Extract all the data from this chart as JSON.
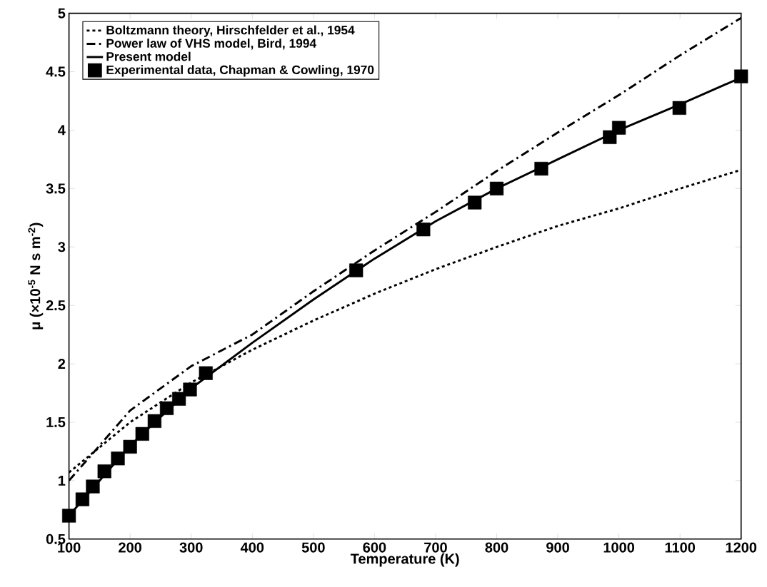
{
  "chart_data": {
    "type": "line",
    "xlabel": "Temperature  (K)",
    "ylabel": "μ  (×10$^{-5}$ N s m$^{-2}$)",
    "xlim": [
      100,
      1200
    ],
    "ylim": [
      0.5,
      5
    ],
    "xticks": [
      100,
      200,
      300,
      400,
      500,
      600,
      700,
      800,
      900,
      1000,
      1100,
      1200
    ],
    "yticks": [
      0.5,
      1,
      1.5,
      2,
      2.5,
      3,
      3.5,
      4,
      4.5,
      5
    ],
    "grid": false,
    "legend": "top left",
    "series": [
      {
        "name": "Boltzmann theory, Hirschfelder et al., 1954",
        "line_style": "dotted",
        "marker": "none",
        "color": "#000000",
        "x": [
          100,
          200,
          300,
          400,
          500,
          600,
          700,
          800,
          900,
          1000,
          1100,
          1200
        ],
        "values": [
          1.07,
          1.5,
          1.84,
          2.12,
          2.37,
          2.6,
          2.81,
          3.0,
          3.18,
          3.33,
          3.5,
          3.66
        ]
      },
      {
        "name": "Power law of VHS model, Bird, 1994",
        "line_style": "dashdot",
        "marker": "none",
        "color": "#000000",
        "x": [
          100,
          200,
          300,
          400,
          500,
          600,
          700,
          800,
          900,
          1000,
          1100,
          1200
        ],
        "values": [
          1.0,
          1.6,
          1.98,
          2.25,
          2.62,
          2.97,
          3.3,
          3.65,
          3.98,
          4.3,
          4.64,
          4.96
        ]
      },
      {
        "name": "Present model",
        "line_style": "solid",
        "marker": "none",
        "color": "#000000",
        "x": [
          100,
          200,
          300,
          400,
          500,
          600,
          700,
          800,
          900,
          1000,
          1100,
          1200
        ],
        "values": [
          0.7,
          1.3,
          1.79,
          2.18,
          2.55,
          2.9,
          3.22,
          3.5,
          3.75,
          4.0,
          4.22,
          4.45
        ]
      },
      {
        "name": "Experimental data, Chapman & Cowling, 1970",
        "type": "scatter",
        "marker": "square",
        "color": "#000000",
        "x": [
          100,
          122,
          139,
          158,
          180,
          200,
          220,
          240,
          260,
          280,
          298,
          324,
          570,
          680,
          764,
          800,
          873,
          985,
          1000,
          1099,
          1200
        ],
        "values": [
          0.7,
          0.84,
          0.95,
          1.08,
          1.19,
          1.29,
          1.4,
          1.51,
          1.62,
          1.7,
          1.78,
          1.92,
          2.8,
          3.15,
          3.38,
          3.5,
          3.67,
          3.94,
          4.02,
          4.19,
          4.46
        ]
      }
    ]
  }
}
